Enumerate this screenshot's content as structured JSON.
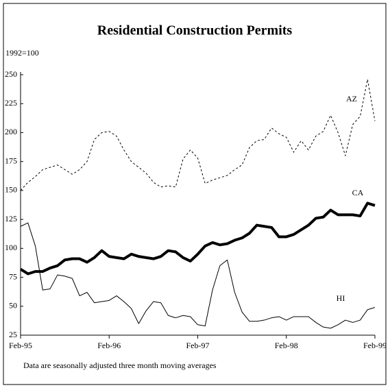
{
  "chart_data": {
    "type": "line",
    "title": "Residential  Construction  Permits",
    "y_label": "1992=100",
    "note": "Data are seasonally adjusted three month moving averages",
    "categories": [
      "Feb-95",
      null,
      null,
      null,
      null,
      null,
      null,
      null,
      null,
      null,
      null,
      null,
      "Feb-96",
      null,
      null,
      null,
      null,
      null,
      null,
      null,
      null,
      null,
      null,
      null,
      "Feb-97",
      null,
      null,
      null,
      null,
      null,
      null,
      null,
      null,
      null,
      null,
      null,
      "Feb-98",
      null,
      null,
      null,
      null,
      null,
      null,
      null,
      null,
      null,
      null,
      null,
      "Feb-99"
    ],
    "series": [
      {
        "name": "AZ",
        "color": "#000",
        "width": 1,
        "dash": "3,3",
        "values": [
          150,
          157,
          162,
          168,
          170,
          172,
          168,
          164,
          168,
          175,
          194,
          200,
          201,
          197,
          185,
          175,
          170,
          165,
          157,
          153,
          154,
          153,
          177,
          185,
          178,
          156,
          159,
          161,
          163,
          168,
          172,
          187,
          193,
          194,
          204,
          199,
          196,
          183,
          193,
          185,
          197,
          201,
          215,
          200,
          180,
          207,
          214,
          246,
          210
        ]
      },
      {
        "name": "CA",
        "color": "#000",
        "width": 4,
        "dash": "none",
        "values": [
          82,
          78,
          80,
          80,
          83,
          85,
          90,
          91,
          91,
          88,
          92,
          98,
          93,
          92,
          91,
          95,
          93,
          92,
          91,
          93,
          98,
          97,
          92,
          89,
          95,
          102,
          105,
          103,
          104,
          107,
          109,
          113,
          120,
          119,
          118,
          110,
          110,
          112,
          116,
          120,
          126,
          127,
          133,
          129,
          129,
          129,
          128,
          139,
          137
        ]
      },
      {
        "name": "HI",
        "color": "#000",
        "width": 1,
        "dash": "none",
        "values": [
          119,
          122,
          102,
          64,
          65,
          77,
          76,
          74,
          59,
          62,
          53,
          54,
          55,
          59,
          54,
          48,
          35,
          46,
          54,
          53,
          42,
          40,
          42,
          41,
          34,
          33,
          64,
          85,
          90,
          62,
          45,
          37,
          37,
          38,
          40,
          41,
          38,
          41,
          41,
          41,
          36,
          32,
          31,
          34,
          38,
          36,
          38,
          47,
          49
        ]
      }
    ],
    "ylim": [
      25,
      250
    ],
    "yticks": [
      25,
      50,
      75,
      100,
      125,
      150,
      175,
      200,
      225,
      250
    ]
  }
}
